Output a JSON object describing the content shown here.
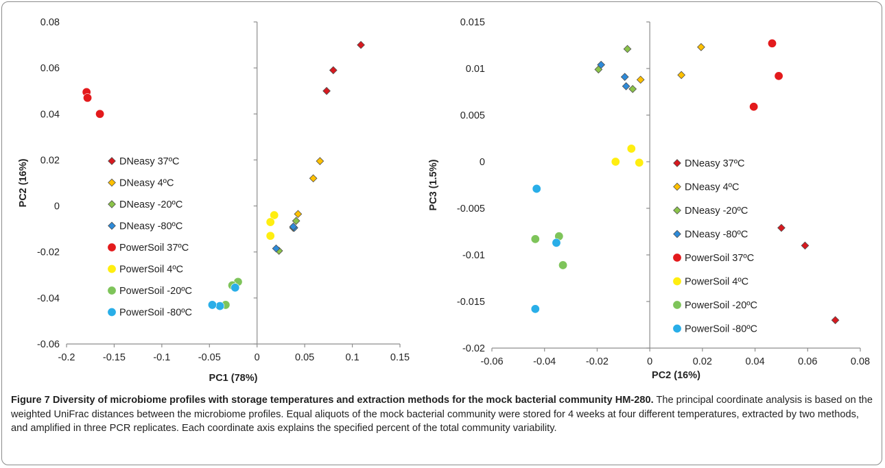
{
  "chart_data": [
    {
      "type": "scatter",
      "title": "",
      "xlabel": "PC1 (78%)",
      "ylabel": "PC2 (16%)",
      "xlim": [
        -0.2,
        0.15
      ],
      "ylim": [
        -0.06,
        0.08
      ],
      "x_ticks": [
        -0.2,
        -0.15,
        -0.1,
        -0.05,
        0,
        0.05,
        0.1,
        0.15
      ],
      "x_tick_labels": [
        "-0.2",
        "-0.15",
        "-0.1",
        "-0.05",
        "0",
        "0.05",
        "0.1",
        "0.15"
      ],
      "y_ticks": [
        -0.06,
        -0.04,
        -0.02,
        0,
        0.02,
        0.04,
        0.06,
        0.08
      ],
      "y_tick_labels": [
        "-0.06",
        "-0.04",
        "-0.02",
        "0",
        "0.02",
        "0.04",
        "0.06",
        "0.08"
      ],
      "grid": false,
      "legend_placement": "left",
      "series": [
        {
          "name": "DNeasy 37ºC",
          "marker": "diamond",
          "color": "#d7191f",
          "points": [
            [
              0.109,
              0.07
            ],
            [
              0.08,
              0.059
            ],
            [
              0.073,
              0.05
            ]
          ]
        },
        {
          "name": "DNeasy  4ºC",
          "marker": "diamond",
          "color": "#ffc000",
          "points": [
            [
              0.066,
              0.0195
            ],
            [
              0.059,
              0.012
            ],
            [
              0.043,
              -0.0035
            ]
          ]
        },
        {
          "name": "DNeasy -20ºC",
          "marker": "diamond",
          "color": "#8bc34a",
          "points": [
            [
              0.041,
              -0.0065
            ],
            [
              0.038,
              -0.0095
            ],
            [
              0.023,
              -0.0195
            ]
          ]
        },
        {
          "name": "DNeasy -80ºC",
          "marker": "diamond",
          "color": "#2e8ad8",
          "points": [
            [
              0.039,
              -0.0095
            ],
            [
              0.038,
              -0.009
            ],
            [
              0.02,
              -0.0185
            ]
          ]
        },
        {
          "name": "PowerSoil 37ºC",
          "marker": "circle",
          "color": "#e31a1c",
          "points": [
            [
              -0.179,
              0.0495
            ],
            [
              -0.178,
              0.047
            ],
            [
              -0.165,
              0.04
            ]
          ]
        },
        {
          "name": "PowerSoil  4ºC",
          "marker": "circle",
          "color": "#ffee10",
          "points": [
            [
              0.018,
              -0.004
            ],
            [
              0.014,
              -0.007
            ],
            [
              0.014,
              -0.013
            ]
          ]
        },
        {
          "name": "PowerSoil -20ºC",
          "marker": "circle",
          "color": "#7ec45a",
          "points": [
            [
              -0.02,
              -0.033
            ],
            [
              -0.026,
              -0.0345
            ],
            [
              -0.033,
              -0.043
            ]
          ]
        },
        {
          "name": "PowerSoil -80ºC",
          "marker": "circle",
          "color": "#29aee8",
          "points": [
            [
              -0.023,
              -0.0355
            ],
            [
              -0.039,
              -0.0435
            ],
            [
              -0.047,
              -0.043
            ]
          ]
        }
      ]
    },
    {
      "type": "scatter",
      "title": "",
      "xlabel": "PC2 (16%)",
      "ylabel": "PC3 (1.5%)",
      "xlim": [
        -0.06,
        0.08
      ],
      "ylim": [
        -0.02,
        0.015
      ],
      "x_ticks": [
        -0.06,
        -0.04,
        -0.02,
        0,
        0.02,
        0.04,
        0.06,
        0.08
      ],
      "x_tick_labels": [
        "-0.06",
        "-0.04",
        "-0.02",
        "0",
        "0.02",
        "0.04",
        "0.06",
        "0.08"
      ],
      "y_ticks": [
        -0.02,
        -0.015,
        -0.01,
        -0.005,
        0,
        0.005,
        0.01,
        0.015
      ],
      "y_tick_labels": [
        "-0.02",
        "-0.015",
        "-0.01",
        "-0.005",
        "0",
        "0.005",
        "0.01",
        "0.015"
      ],
      "grid": false,
      "legend_placement": "right",
      "series": [
        {
          "name": "DNeasy 37ºC",
          "marker": "diamond",
          "color": "#d7191f",
          "points": [
            [
              0.05,
              -0.0071
            ],
            [
              0.059,
              -0.009
            ],
            [
              0.0705,
              -0.017
            ]
          ]
        },
        {
          "name": "DNeasy  4ºC",
          "marker": "diamond",
          "color": "#ffc000",
          "points": [
            [
              0.0195,
              0.0123
            ],
            [
              0.012,
              0.0093
            ],
            [
              -0.0035,
              0.0088
            ]
          ]
        },
        {
          "name": "DNeasy -20ºC",
          "marker": "diamond",
          "color": "#8bc34a",
          "points": [
            [
              -0.0085,
              0.0121
            ],
            [
              -0.0195,
              0.0099
            ],
            [
              -0.0065,
              0.0078
            ]
          ]
        },
        {
          "name": "DNeasy -80ºC",
          "marker": "diamond",
          "color": "#2e8ad8",
          "points": [
            [
              -0.0185,
              0.0104
            ],
            [
              -0.0095,
              0.0091
            ],
            [
              -0.009,
              0.0081
            ]
          ]
        },
        {
          "name": "PowerSoil 37ºC",
          "marker": "circle",
          "color": "#e31a1c",
          "points": [
            [
              0.0465,
              0.0127
            ],
            [
              0.049,
              0.0092
            ],
            [
              0.0395,
              0.0059
            ]
          ]
        },
        {
          "name": "PowerSoil  4ºC",
          "marker": "circle",
          "color": "#ffee10",
          "points": [
            [
              -0.007,
              0.0014
            ],
            [
              -0.013,
              0.0
            ],
            [
              -0.004,
              -0.0001
            ]
          ]
        },
        {
          "name": "PowerSoil -20ºC",
          "marker": "circle",
          "color": "#7ec45a",
          "points": [
            [
              -0.0435,
              -0.0083
            ],
            [
              -0.0345,
              -0.008
            ],
            [
              -0.033,
              -0.0111
            ]
          ]
        },
        {
          "name": "PowerSoil -80ºC",
          "marker": "circle",
          "color": "#29aee8",
          "points": [
            [
              -0.043,
              -0.0029
            ],
            [
              -0.0355,
              -0.0087
            ],
            [
              -0.0435,
              -0.0158
            ]
          ]
        }
      ]
    }
  ],
  "caption": {
    "figure_label": "Figure 7",
    "title": "Diversity of microbiome profiles with storage temperatures and extraction methods for the mock bacterial community HM-280.",
    "body": "The principal coordinate analysis is based on the weighted UniFrac distances between the microbiome profiles. Equal aliquots of the mock bacterial community were stored for 4 weeks at four different temperatures, extracted by two methods, and amplified in three PCR replicates. Each coordinate axis explains the specified percent of the total community variability."
  }
}
